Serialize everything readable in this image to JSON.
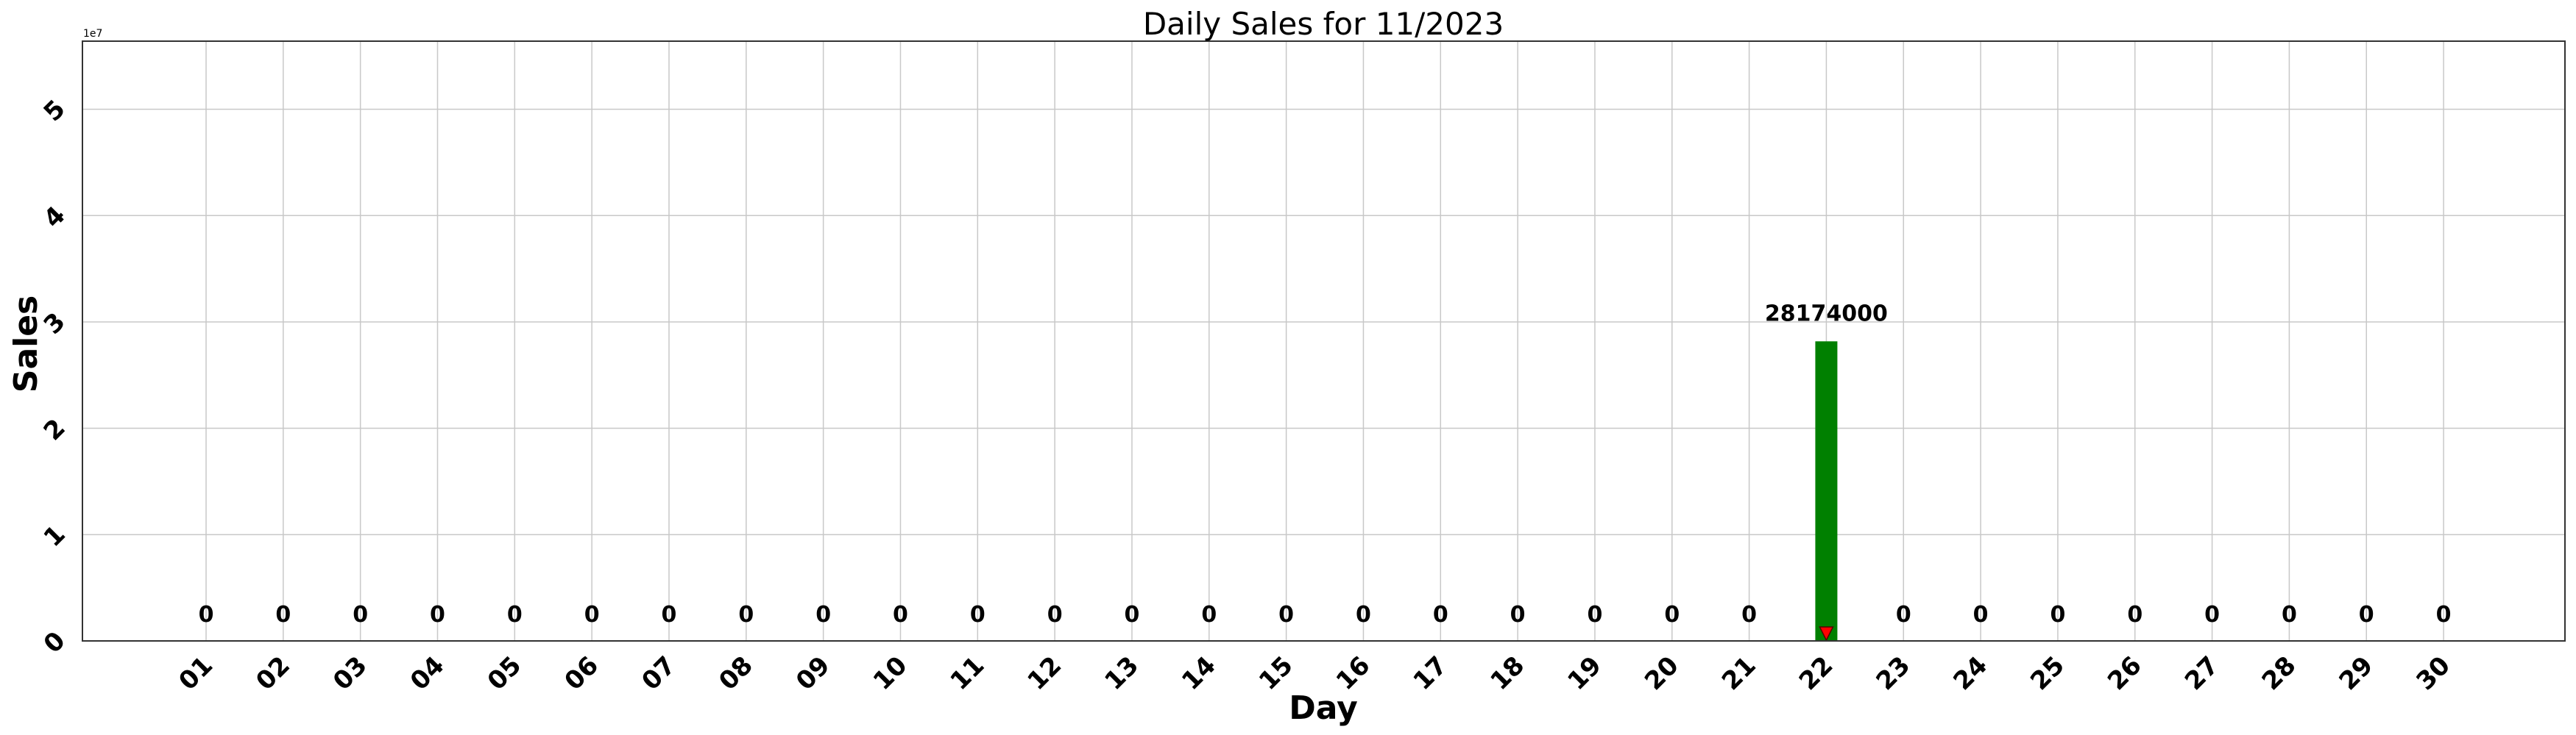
{
  "chart_data": {
    "type": "bar",
    "title": "Daily Sales for 11/2023",
    "xlabel": "Day",
    "ylabel": "Sales",
    "y_offset_label": "1e7",
    "categories": [
      "01",
      "02",
      "03",
      "04",
      "05",
      "06",
      "07",
      "08",
      "09",
      "10",
      "11",
      "12",
      "13",
      "14",
      "15",
      "16",
      "17",
      "18",
      "19",
      "20",
      "21",
      "22",
      "23",
      "24",
      "25",
      "26",
      "27",
      "28",
      "29",
      "30"
    ],
    "values": [
      0,
      0,
      0,
      0,
      0,
      0,
      0,
      0,
      0,
      0,
      0,
      0,
      0,
      0,
      0,
      0,
      0,
      0,
      0,
      0,
      0,
      28174000,
      0,
      0,
      0,
      0,
      0,
      0,
      0,
      0
    ],
    "data_labels": [
      "0",
      "0",
      "0",
      "0",
      "0",
      "0",
      "0",
      "0",
      "0",
      "0",
      "0",
      "0",
      "0",
      "0",
      "0",
      "0",
      "0",
      "0",
      "0",
      "0",
      "0",
      "28174000",
      "0",
      "0",
      "0",
      "0",
      "0",
      "0",
      "0",
      "0"
    ],
    "ylim": [
      0,
      56400000
    ],
    "yticks": [
      0,
      10000000,
      20000000,
      30000000,
      40000000,
      50000000
    ],
    "ytick_labels": [
      "0",
      "1",
      "2",
      "3",
      "4",
      "5"
    ],
    "grid": true,
    "bar_color": "#008000",
    "marker": {
      "category": "22",
      "value": 0,
      "shape": "triangle-down",
      "color": "#ff0000"
    }
  }
}
